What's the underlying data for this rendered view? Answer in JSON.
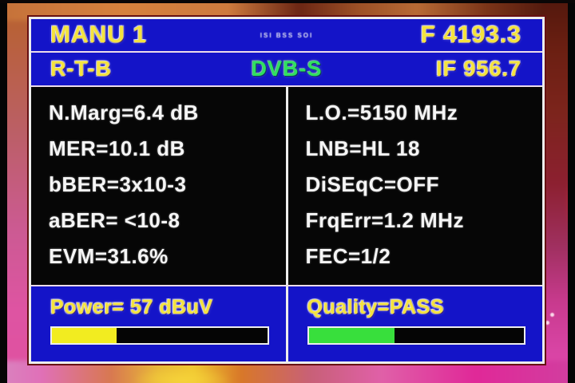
{
  "screen": {
    "top_bar": {
      "title": "MANU 1",
      "small_center_text": "ISI BSS SOI",
      "frequency": "F 4193.3"
    },
    "info_bar": {
      "satellite": "R-T-B",
      "system": "DVB-S",
      "if_frequency": "IF 956.7"
    },
    "measurements": {
      "left": [
        {
          "label": "N.Marg",
          "value": "6.4 dB",
          "text": "N.Marg=6.4 dB"
        },
        {
          "label": "MER",
          "value": "10.1 dB",
          "text": "MER=10.1 dB"
        },
        {
          "label": "bBER",
          "value": "3x10-3",
          "text": "bBER=3x10-3"
        },
        {
          "label": "aBER",
          "value": "<10-8",
          "text": "aBER= <10-8"
        },
        {
          "label": "EVM",
          "value": "31.6%",
          "text": "EVM=31.6%"
        }
      ],
      "right": [
        {
          "label": "L.O.",
          "value": "5150 MHz",
          "text": "L.O.=5150 MHz"
        },
        {
          "label": "LNB",
          "value": "HL 18",
          "text": "LNB=HL 18"
        },
        {
          "label": "DiSEqC",
          "value": "OFF",
          "text": "DiSEqC=OFF"
        },
        {
          "label": "FrqErr",
          "value": "1.2 MHz",
          "text": "FrqErr=1.2 MHz"
        },
        {
          "label": "FEC",
          "value": "1/2",
          "text": "FEC=1/2"
        }
      ]
    },
    "power_meter": {
      "text": "Power= 57 dBuV",
      "value": 57,
      "unit": "dBuV",
      "fill_percent": 30,
      "fill_css": "30%",
      "bar_color": "#f2ec20"
    },
    "quality_meter": {
      "text": "Quality=PASS",
      "value": "PASS",
      "fill_percent": 40,
      "fill_css": "40%",
      "bar_color": "#38df3c"
    },
    "colors": {
      "panel_blue": "#1414c8",
      "panel_black": "#060606",
      "text_yellow": "#f4e33e",
      "text_green": "#2fe060",
      "text_white": "#f5f5f5",
      "border_white": "#ededed",
      "frame_maroon": "#661012"
    }
  }
}
